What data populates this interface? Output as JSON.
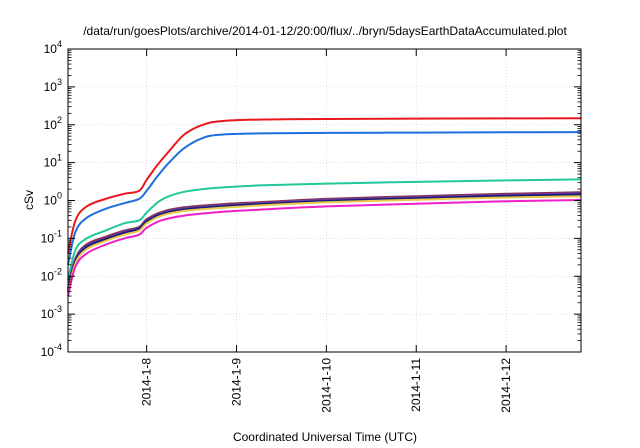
{
  "chart_data": {
    "type": "line",
    "title": "/data/run/goesPlots/archive/2014-01-12/20:00/flux/../bryn/5daysEarthDataAccumulated.plot",
    "xlabel": "Coordinated Universal Time (UTC)",
    "ylabel": "cSv",
    "yscale": "log",
    "ylim": [
      0.0001,
      10000
    ],
    "xlim": [
      "2014-01-07 03:00",
      "2014-01-12 20:00"
    ],
    "y_ticks": [
      {
        "value": 0.0001,
        "base": "10",
        "exp": "-4"
      },
      {
        "value": 0.001,
        "base": "10",
        "exp": "-3"
      },
      {
        "value": 0.01,
        "base": "10",
        "exp": "-2"
      },
      {
        "value": 0.1,
        "base": "10",
        "exp": "-1"
      },
      {
        "value": 1,
        "base": "10",
        "exp": "0"
      },
      {
        "value": 10,
        "base": "10",
        "exp": "1"
      },
      {
        "value": 100,
        "base": "10",
        "exp": "2"
      },
      {
        "value": 1000,
        "base": "10",
        "exp": "3"
      },
      {
        "value": 10000,
        "base": "10",
        "exp": "4"
      }
    ],
    "x_ticks": [
      {
        "value": "2014-01-08 00:00",
        "label": "2014-1-8"
      },
      {
        "value": "2014-01-09 00:00",
        "label": "2014-1-9"
      },
      {
        "value": "2014-01-10 00:00",
        "label": "2014-1-10"
      },
      {
        "value": "2014-01-11 00:00",
        "label": "2014-1-11"
      },
      {
        "value": "2014-01-12 00:00",
        "label": "2014-1-12"
      }
    ],
    "grid": true,
    "legend": "none",
    "series": [
      {
        "color": "#e8181c",
        "x": [
          "2014-01-07 03:00",
          "2014-01-07 05:00",
          "2014-01-07 08:00",
          "2014-01-07 13:00",
          "2014-01-07 18:00",
          "2014-01-07 22:00",
          "2014-01-08 00:00",
          "2014-01-08 03:00",
          "2014-01-08 06:00",
          "2014-01-08 10:00",
          "2014-01-08 15:00",
          "2014-01-08 20:00",
          "2014-01-09 06:00",
          "2014-01-10 00:00",
          "2014-01-11 00:00",
          "2014-01-12 00:00",
          "2014-01-12 20:00"
        ],
        "y": [
          0.04,
          0.3,
          0.7,
          1.1,
          1.5,
          1.8,
          3.5,
          9,
          20,
          55,
          100,
          125,
          137,
          142,
          145,
          147,
          149
        ]
      },
      {
        "color": "#1e6fdc",
        "x": [
          "2014-01-07 03:00",
          "2014-01-07 05:00",
          "2014-01-07 08:00",
          "2014-01-07 13:00",
          "2014-01-07 18:00",
          "2014-01-07 22:00",
          "2014-01-08 00:00",
          "2014-01-08 03:00",
          "2014-01-08 06:00",
          "2014-01-08 10:00",
          "2014-01-08 15:00",
          "2014-01-08 20:00",
          "2014-01-09 06:00",
          "2014-01-10 00:00",
          "2014-01-11 00:00",
          "2014-01-12 00:00",
          "2014-01-12 20:00"
        ],
        "y": [
          0.02,
          0.15,
          0.35,
          0.6,
          0.85,
          1.1,
          1.8,
          4.5,
          10,
          24,
          45,
          55,
          59,
          61,
          62,
          63,
          64
        ]
      },
      {
        "color": "#20c89a",
        "x": [
          "2014-01-07 03:00",
          "2014-01-07 05:00",
          "2014-01-07 08:00",
          "2014-01-07 13:00",
          "2014-01-07 18:00",
          "2014-01-07 22:00",
          "2014-01-08 00:00",
          "2014-01-08 03:00",
          "2014-01-08 06:00",
          "2014-01-08 10:00",
          "2014-01-08 15:00",
          "2014-01-08 20:00",
          "2014-01-09 06:00",
          "2014-01-10 00:00",
          "2014-01-11 00:00",
          "2014-01-12 00:00",
          "2014-01-12 20:00"
        ],
        "y": [
          0.008,
          0.05,
          0.1,
          0.16,
          0.25,
          0.3,
          0.48,
          0.9,
          1.3,
          1.7,
          2.0,
          2.2,
          2.5,
          2.8,
          3.1,
          3.4,
          3.6
        ]
      },
      {
        "color": "#8a3050",
        "x": [
          "2014-01-07 03:00",
          "2014-01-07 05:00",
          "2014-01-07 08:00",
          "2014-01-07 13:00",
          "2014-01-07 18:00",
          "2014-01-07 22:00",
          "2014-01-08 00:00",
          "2014-01-08 04:00",
          "2014-01-08 10:00",
          "2014-01-08 20:00",
          "2014-01-09 06:00",
          "2014-01-10 00:00",
          "2014-01-11 00:00",
          "2014-01-12 00:00",
          "2014-01-12 20:00"
        ],
        "y": [
          0.005,
          0.03,
          0.07,
          0.11,
          0.16,
          0.2,
          0.32,
          0.5,
          0.66,
          0.8,
          0.9,
          1.1,
          1.3,
          1.5,
          1.65
        ]
      },
      {
        "color": "#6a3ea0",
        "x": [
          "2014-01-07 03:00",
          "2014-01-07 05:00",
          "2014-01-07 08:00",
          "2014-01-07 13:00",
          "2014-01-07 18:00",
          "2014-01-07 22:00",
          "2014-01-08 00:00",
          "2014-01-08 04:00",
          "2014-01-08 10:00",
          "2014-01-08 20:00",
          "2014-01-09 06:00",
          "2014-01-10 00:00",
          "2014-01-11 00:00",
          "2014-01-12 00:00",
          "2014-01-12 20:00"
        ],
        "y": [
          0.0045,
          0.028,
          0.065,
          0.1,
          0.15,
          0.19,
          0.3,
          0.47,
          0.62,
          0.75,
          0.85,
          1.04,
          1.22,
          1.4,
          1.55
        ]
      },
      {
        "color": "#1a1a7a",
        "x": [
          "2014-01-07 03:00",
          "2014-01-07 05:00",
          "2014-01-07 08:00",
          "2014-01-07 13:00",
          "2014-01-07 18:00",
          "2014-01-07 22:00",
          "2014-01-08 00:00",
          "2014-01-08 04:00",
          "2014-01-08 10:00",
          "2014-01-08 20:00",
          "2014-01-09 06:00",
          "2014-01-10 00:00",
          "2014-01-11 00:00",
          "2014-01-12 00:00",
          "2014-01-12 20:00"
        ],
        "y": [
          0.004,
          0.025,
          0.06,
          0.095,
          0.14,
          0.18,
          0.28,
          0.44,
          0.58,
          0.7,
          0.8,
          0.97,
          1.15,
          1.32,
          1.45
        ]
      },
      {
        "color": "#e8c848",
        "x": [
          "2014-01-07 03:00",
          "2014-01-07 05:00",
          "2014-01-07 08:00",
          "2014-01-07 13:00",
          "2014-01-07 18:00",
          "2014-01-07 22:00",
          "2014-01-08 00:00",
          "2014-01-08 04:00",
          "2014-01-08 10:00",
          "2014-01-08 20:00",
          "2014-01-09 06:00",
          "2014-01-10 00:00",
          "2014-01-11 00:00",
          "2014-01-12 00:00",
          "2014-01-12 20:00"
        ],
        "y": [
          0.0035,
          0.022,
          0.052,
          0.085,
          0.125,
          0.16,
          0.25,
          0.4,
          0.53,
          0.64,
          0.74,
          0.9,
          1.05,
          1.2,
          1.3
        ]
      },
      {
        "color": "#f020c8",
        "x": [
          "2014-01-07 03:00",
          "2014-01-07 05:00",
          "2014-01-07 08:00",
          "2014-01-07 13:00",
          "2014-01-07 18:00",
          "2014-01-07 22:00",
          "2014-01-08 00:00",
          "2014-01-08 04:00",
          "2014-01-08 10:00",
          "2014-01-08 20:00",
          "2014-01-09 06:00",
          "2014-01-10 00:00",
          "2014-01-11 00:00",
          "2014-01-12 00:00",
          "2014-01-12 20:00"
        ],
        "y": [
          0.003,
          0.018,
          0.04,
          0.068,
          0.1,
          0.125,
          0.19,
          0.3,
          0.4,
          0.5,
          0.57,
          0.7,
          0.82,
          0.95,
          1.03
        ]
      }
    ]
  }
}
